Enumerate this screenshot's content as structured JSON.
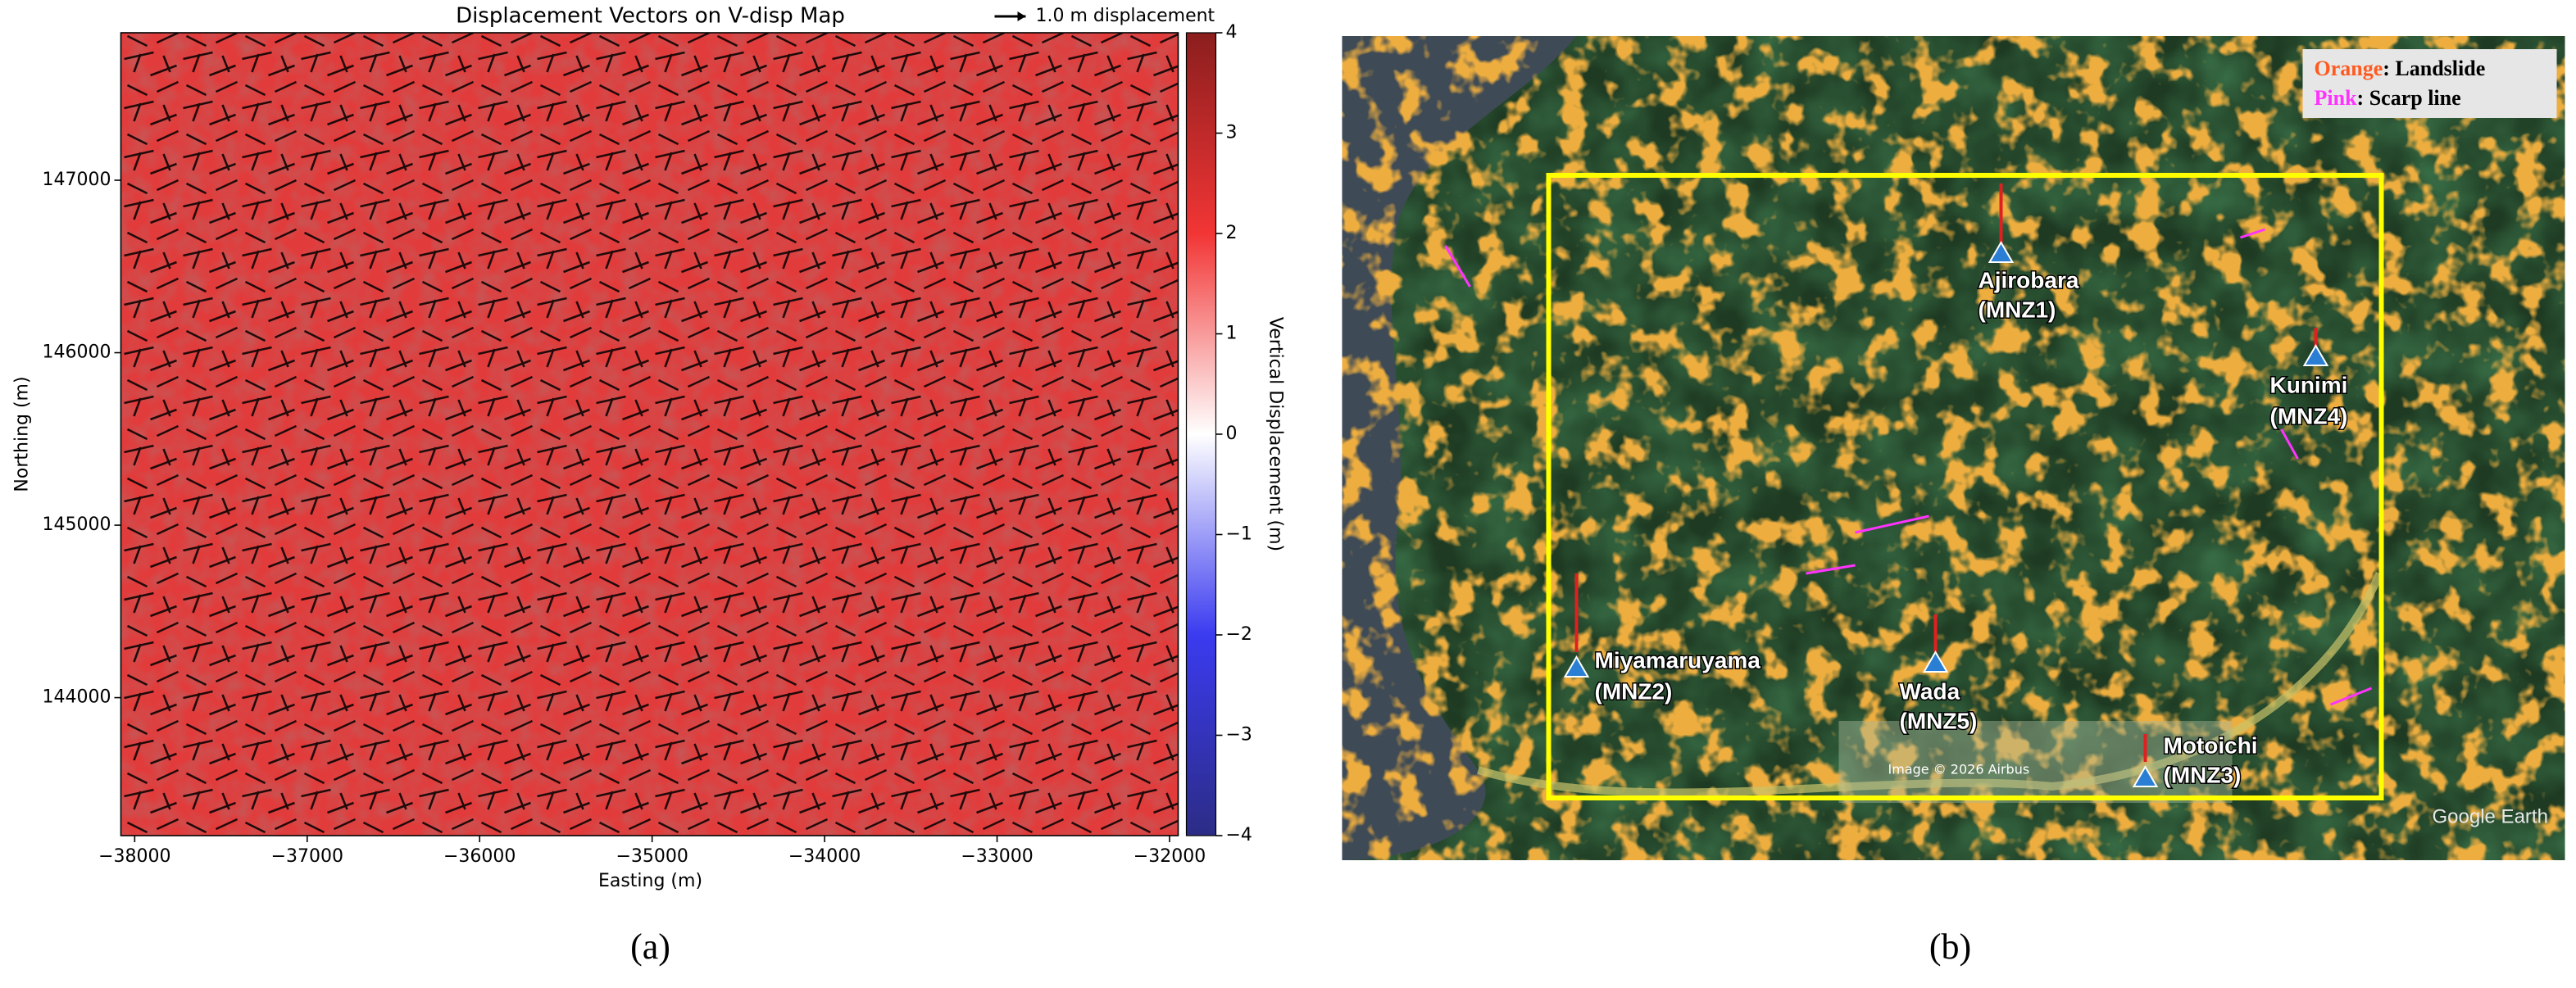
{
  "panel_labels": [
    "(a)",
    "(b)"
  ],
  "chart_data": {
    "type": "quiver",
    "title": "Displacement Vectors on V-disp Map",
    "key_label": "1.0 m displacement",
    "x_label": "Easting (m)",
    "y_label": "Northing (m)",
    "xlim": [
      -38080,
      -31950
    ],
    "xticks": [
      {
        "value": -38000,
        "label": "−38000"
      },
      {
        "value": -37000,
        "label": "−37000"
      },
      {
        "value": -36000,
        "label": "−36000"
      },
      {
        "value": -35000,
        "label": "−35000"
      },
      {
        "value": -34000,
        "label": "−34000"
      },
      {
        "value": -33000,
        "label": "−33000"
      },
      {
        "value": -32000,
        "label": "−32000"
      }
    ],
    "ylim": [
      143200,
      147855
    ],
    "yticks": [
      144000,
      145000,
      146000,
      147000
    ],
    "colorbar": {
      "label": "Vertical Displacement (m)",
      "lim": [
        -4,
        4
      ],
      "ticks": [
        {
          "value": -4,
          "label": "−4"
        },
        {
          "value": -3,
          "label": "−3"
        },
        {
          "value": -2,
          "label": "−2"
        },
        {
          "value": -1,
          "label": "−1"
        },
        0,
        1,
        2,
        3,
        4
      ],
      "colors": [
        "#2c2c86",
        "#3b3bf0",
        "#ffffff",
        "#f23535",
        "#8b1e1e"
      ]
    }
  },
  "map": {
    "legend": [
      {
        "key": "Orange",
        "text": ": Landslide",
        "color": "#ff5a1f"
      },
      {
        "key": "Pink",
        "text": ": Scarp line",
        "color": "#ff33ff"
      }
    ],
    "sites": [
      {
        "name": "Ajirobara",
        "code": "(MNZ1)"
      },
      {
        "name": "Kunimi",
        "code": "(MNZ4)"
      },
      {
        "name": "Miyamaruyama",
        "code": "(MNZ2)"
      },
      {
        "name": "Wada",
        "code": "(MNZ5)"
      },
      {
        "name": "Motoichi",
        "code": "(MNZ3)"
      }
    ],
    "credits": [
      "Image © 2026 Airbus",
      "Google Earth"
    ]
  }
}
